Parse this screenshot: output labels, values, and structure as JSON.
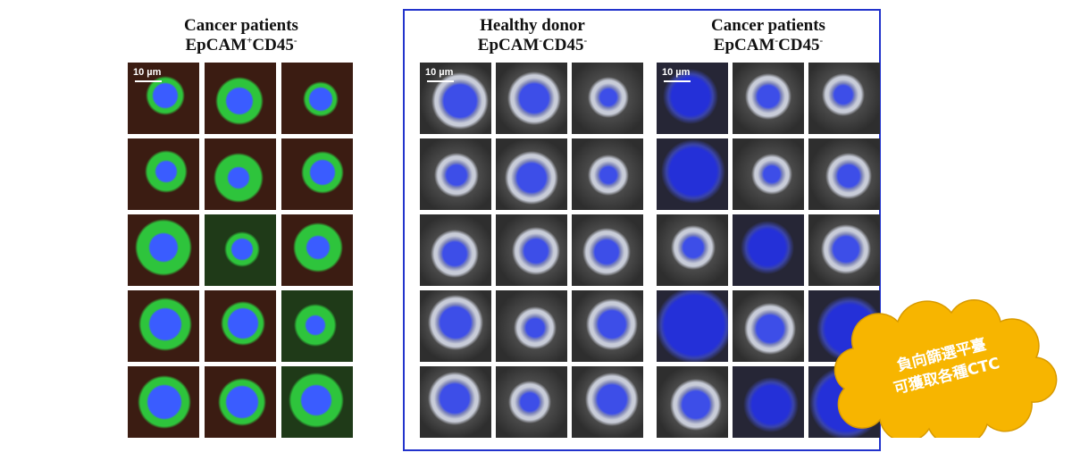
{
  "panels": [
    {
      "title": "Cancer patients",
      "marker": {
        "name": "EpCAM",
        "sup1": "+",
        "name2": "CD45",
        "sup2": "-"
      },
      "scale_label": "10 µm"
    },
    {
      "title": "Healthy donor",
      "marker": {
        "name": "EpCAM",
        "sup1": "-",
        "name2": "CD45",
        "sup2": "-"
      },
      "scale_label": "10 µm"
    },
    {
      "title": "Cancer patients",
      "marker": {
        "name": "EpCAM",
        "sup1": "-",
        "name2": "CD45",
        "sup2": "-"
      },
      "scale_label": "10 µm"
    }
  ],
  "callout": {
    "line1": "負向篩選平臺",
    "line2": "可獲取各種CTC"
  }
}
